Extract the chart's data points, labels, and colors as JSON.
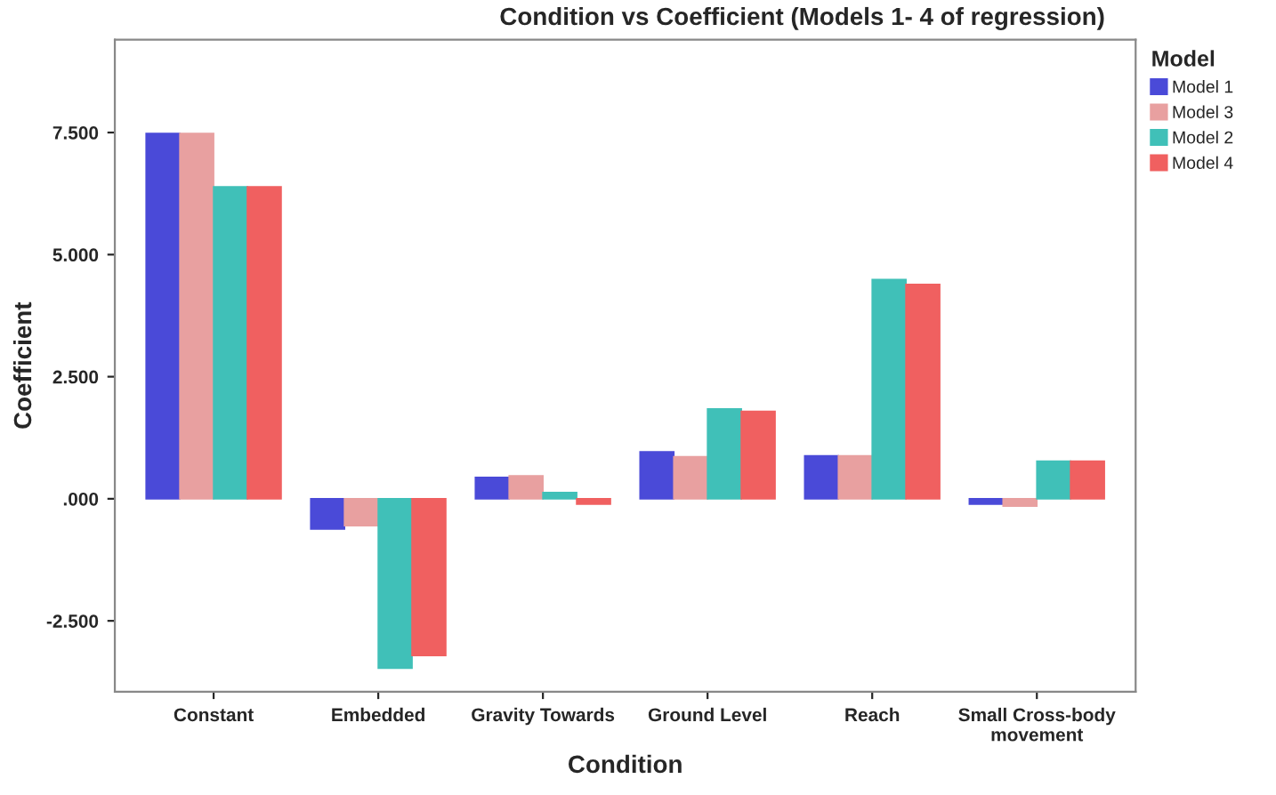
{
  "chart_data": {
    "type": "bar",
    "title": "Condition vs Coefficient (Models 1- 4 of regression)",
    "xlabel": "Condition",
    "ylabel": "Coefficient",
    "legend_title": "Model",
    "legend": "right",
    "grid": false,
    "categories": [
      "Constant",
      "Embedded",
      "Gravity Towards",
      "Ground Level",
      "Reach",
      "Small Cross-body\nmovement"
    ],
    "ylim": [
      -3.95,
      9.4
    ],
    "yticks": [
      {
        "value": -2.5,
        "label": "-2.500"
      },
      {
        "value": 0,
        "label": ".000"
      },
      {
        "value": 2.5,
        "label": "2.500"
      },
      {
        "value": 5,
        "label": "5.000"
      },
      {
        "value": 7.5,
        "label": "7.500"
      }
    ],
    "series": [
      {
        "name": "Model 1",
        "color": "#4a4ad8",
        "values": [
          7.48,
          -0.62,
          0.44,
          0.96,
          0.88,
          -0.11
        ]
      },
      {
        "name": "Model 3",
        "color": "#e8a0a0",
        "values": [
          7.48,
          -0.55,
          0.47,
          0.86,
          0.88,
          -0.15
        ]
      },
      {
        "name": "Model 2",
        "color": "#40c0b8",
        "values": [
          6.39,
          -3.47,
          0.13,
          1.84,
          4.49,
          0.77
        ]
      },
      {
        "name": "Model 4",
        "color": "#f06060",
        "values": [
          6.39,
          -3.21,
          -0.11,
          1.79,
          4.39,
          0.77
        ]
      }
    ]
  }
}
